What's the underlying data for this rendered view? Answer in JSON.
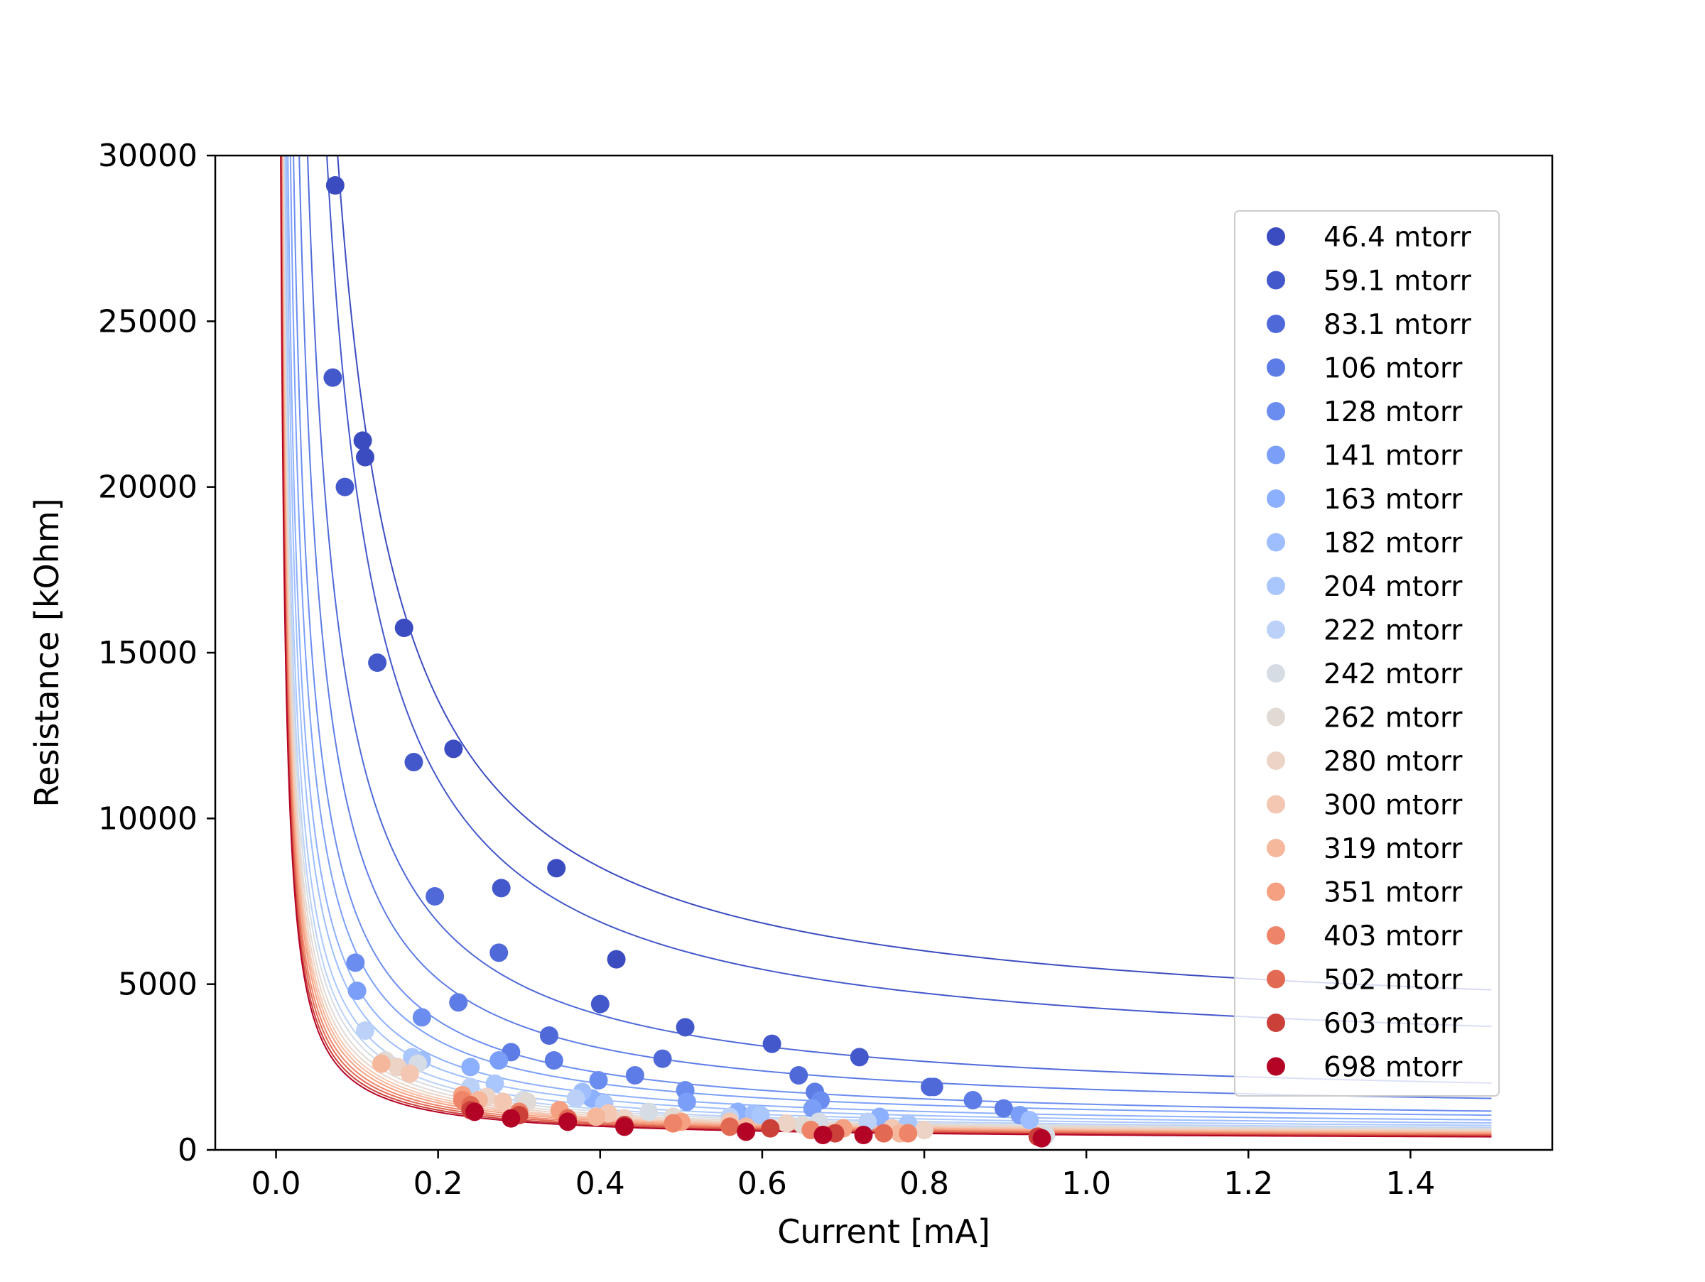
{
  "chart_data": {
    "type": "scatter",
    "title": "",
    "xlabel": "Current [mA]",
    "ylabel": "Resistance [kOhm]",
    "xlim": [
      -0.075,
      1.575
    ],
    "ylim": [
      0,
      30000
    ],
    "xticks": [
      0.0,
      0.2,
      0.4,
      0.6,
      0.8,
      1.0,
      1.2,
      1.4
    ],
    "xtick_labels": [
      "0.0",
      "0.2",
      "0.4",
      "0.6",
      "0.8",
      "1.0",
      "1.2",
      "1.4"
    ],
    "yticks": [
      0,
      5000,
      10000,
      15000,
      20000,
      25000,
      30000
    ],
    "ytick_labels": [
      "0",
      "5000",
      "10000",
      "15000",
      "20000",
      "25000",
      "30000"
    ],
    "grid": false,
    "legend_position": "upper right",
    "fit_x_range": [
      0.005,
      1.5
    ],
    "series": [
      {
        "name": "46.4 mtorr",
        "color": "#3b4cc0",
        "fit": {
          "a": 2017,
          "b": 3484
        },
        "points": [
          [
            0.073,
            29100
          ],
          [
            0.107,
            21400
          ],
          [
            0.11,
            20900
          ],
          [
            0.158,
            15750
          ],
          [
            0.219,
            12100
          ],
          [
            0.346,
            8500
          ],
          [
            0.42,
            5750
          ]
        ]
      },
      {
        "name": "59.1 mtorr",
        "color": "#4358cb",
        "fit": {
          "a": 1720,
          "b": 2580
        },
        "points": [
          [
            0.07,
            23300
          ],
          [
            0.085,
            20000
          ],
          [
            0.125,
            14700
          ],
          [
            0.17,
            11700
          ],
          [
            0.278,
            7900
          ],
          [
            0.4,
            4400
          ],
          [
            0.505,
            3700
          ],
          [
            0.612,
            3200
          ],
          [
            0.72,
            2800
          ]
        ]
      },
      {
        "name": "83.1 mtorr",
        "color": "#4f69d9",
        "fit": {
          "a": 1120,
          "b": 1270
        },
        "points": [
          [
            0.196,
            7650
          ],
          [
            0.275,
            5950
          ],
          [
            0.337,
            3450
          ],
          [
            0.477,
            2750
          ],
          [
            0.645,
            2250
          ],
          [
            0.807,
            1900
          ],
          [
            0.812,
            1900
          ]
        ]
      },
      {
        "name": "106 mtorr",
        "color": "#5d7ce6",
        "fit": {
          "a": 830,
          "b": 1000
        },
        "points": [
          [
            0.225,
            4450
          ],
          [
            0.29,
            2950
          ],
          [
            0.343,
            2700
          ],
          [
            0.443,
            2250
          ],
          [
            0.665,
            1750
          ],
          [
            0.86,
            1500
          ],
          [
            0.898,
            1250
          ]
        ]
      },
      {
        "name": "128 mtorr",
        "color": "#6b8df0",
        "fit": {
          "a": 630,
          "b": 750
        },
        "points": [
          [
            0.098,
            5650
          ],
          [
            0.18,
            4000
          ],
          [
            0.398,
            2100
          ],
          [
            0.505,
            1800
          ],
          [
            0.672,
            1500
          ]
        ]
      },
      {
        "name": "141 mtorr",
        "color": "#7b9ff9",
        "fit": {
          "a": 520,
          "b": 700
        },
        "points": [
          [
            0.1,
            4800
          ],
          [
            0.275,
            2700
          ],
          [
            0.507,
            1450
          ],
          [
            0.662,
            1250
          ],
          [
            0.918,
            1050
          ]
        ]
      },
      {
        "name": "163 mtorr",
        "color": "#8caffe",
        "fit": {
          "a": 430,
          "b": 620
        },
        "points": [
          [
            0.24,
            2500
          ],
          [
            0.39,
            1550
          ],
          [
            0.57,
            1150
          ],
          [
            0.745,
            1000
          ]
        ]
      },
      {
        "name": "182 mtorr",
        "color": "#9ebeff",
        "fit": {
          "a": 380,
          "b": 560
        },
        "points": [
          [
            0.18,
            2700
          ],
          [
            0.378,
            1750
          ],
          [
            0.59,
            1100
          ],
          [
            0.93,
            900
          ]
        ]
      },
      {
        "name": "204 mtorr",
        "color": "#aac7fd",
        "fit": {
          "a": 330,
          "b": 520
        },
        "points": [
          [
            0.168,
            2800
          ],
          [
            0.27,
            2000
          ],
          [
            0.405,
            1400
          ],
          [
            0.598,
            1050
          ],
          [
            0.78,
            800
          ]
        ]
      },
      {
        "name": "222 mtorr",
        "color": "#bbd1f8",
        "fit": {
          "a": 300,
          "b": 480
        },
        "points": [
          [
            0.11,
            3600
          ],
          [
            0.24,
            1900
          ],
          [
            0.37,
            1550
          ],
          [
            0.56,
            1000
          ],
          [
            0.73,
            850
          ]
        ]
      },
      {
        "name": "242 mtorr",
        "color": "#d6dce4",
        "fit": {
          "a": 280,
          "b": 460
        },
        "points": [
          [
            0.175,
            2600
          ],
          [
            0.305,
            1500
          ],
          [
            0.46,
            1150
          ],
          [
            0.67,
            850
          ],
          [
            0.95,
            450
          ]
        ]
      },
      {
        "name": "262 mtorr",
        "color": "#e1d9d3",
        "fit": {
          "a": 260,
          "b": 440
        },
        "points": [
          [
            0.135,
            2700
          ],
          [
            0.31,
            1450
          ],
          [
            0.49,
            1000
          ],
          [
            0.65,
            750
          ]
        ]
      },
      {
        "name": "280 mtorr",
        "color": "#ecd3c5",
        "fit": {
          "a": 245,
          "b": 420
        },
        "points": [
          [
            0.15,
            2500
          ],
          [
            0.26,
            1600
          ],
          [
            0.43,
            950
          ],
          [
            0.63,
            800
          ],
          [
            0.8,
            600
          ]
        ]
      },
      {
        "name": "300 mtorr",
        "color": "#f3c7b1",
        "fit": {
          "a": 232,
          "b": 400
        },
        "points": [
          [
            0.165,
            2300
          ],
          [
            0.28,
            1450
          ],
          [
            0.41,
            1100
          ],
          [
            0.56,
            850
          ],
          [
            0.76,
            650
          ]
        ]
      },
      {
        "name": "319 mtorr",
        "color": "#f6b89c",
        "fit": {
          "a": 222,
          "b": 380
        },
        "points": [
          [
            0.13,
            2600
          ],
          [
            0.25,
            1500
          ],
          [
            0.395,
            1000
          ],
          [
            0.58,
            700
          ],
          [
            0.77,
            500
          ]
        ]
      },
      {
        "name": "351 mtorr",
        "color": "#f5a081",
        "fit": {
          "a": 212,
          "b": 360
        },
        "points": [
          [
            0.23,
            1650
          ],
          [
            0.35,
            1200
          ],
          [
            0.5,
            850
          ],
          [
            0.7,
            650
          ]
        ]
      },
      {
        "name": "403 mtorr",
        "color": "#ee8468",
        "fit": {
          "a": 200,
          "b": 340
        },
        "points": [
          [
            0.23,
            1500
          ],
          [
            0.3,
            1150
          ],
          [
            0.49,
            800
          ],
          [
            0.66,
            600
          ],
          [
            0.78,
            500
          ]
        ]
      },
      {
        "name": "502 mtorr",
        "color": "#e26952",
        "fit": {
          "a": 190,
          "b": 320
        },
        "points": [
          [
            0.24,
            1350
          ],
          [
            0.36,
            950
          ],
          [
            0.56,
            700
          ],
          [
            0.75,
            500
          ]
        ]
      },
      {
        "name": "603 mtorr",
        "color": "#cc403a",
        "fit": {
          "a": 180,
          "b": 300
        },
        "points": [
          [
            0.24,
            1200
          ],
          [
            0.3,
            1050
          ],
          [
            0.43,
            750
          ],
          [
            0.61,
            650
          ],
          [
            0.69,
            500
          ],
          [
            0.94,
            400
          ]
        ]
      },
      {
        "name": "698 mtorr",
        "color": "#b40426",
        "fit": {
          "a": 172,
          "b": 280
        },
        "points": [
          [
            0.245,
            1150
          ],
          [
            0.29,
            950
          ],
          [
            0.36,
            850
          ],
          [
            0.43,
            700
          ],
          [
            0.58,
            550
          ],
          [
            0.675,
            450
          ],
          [
            0.725,
            450
          ],
          [
            0.945,
            350
          ]
        ]
      }
    ]
  }
}
